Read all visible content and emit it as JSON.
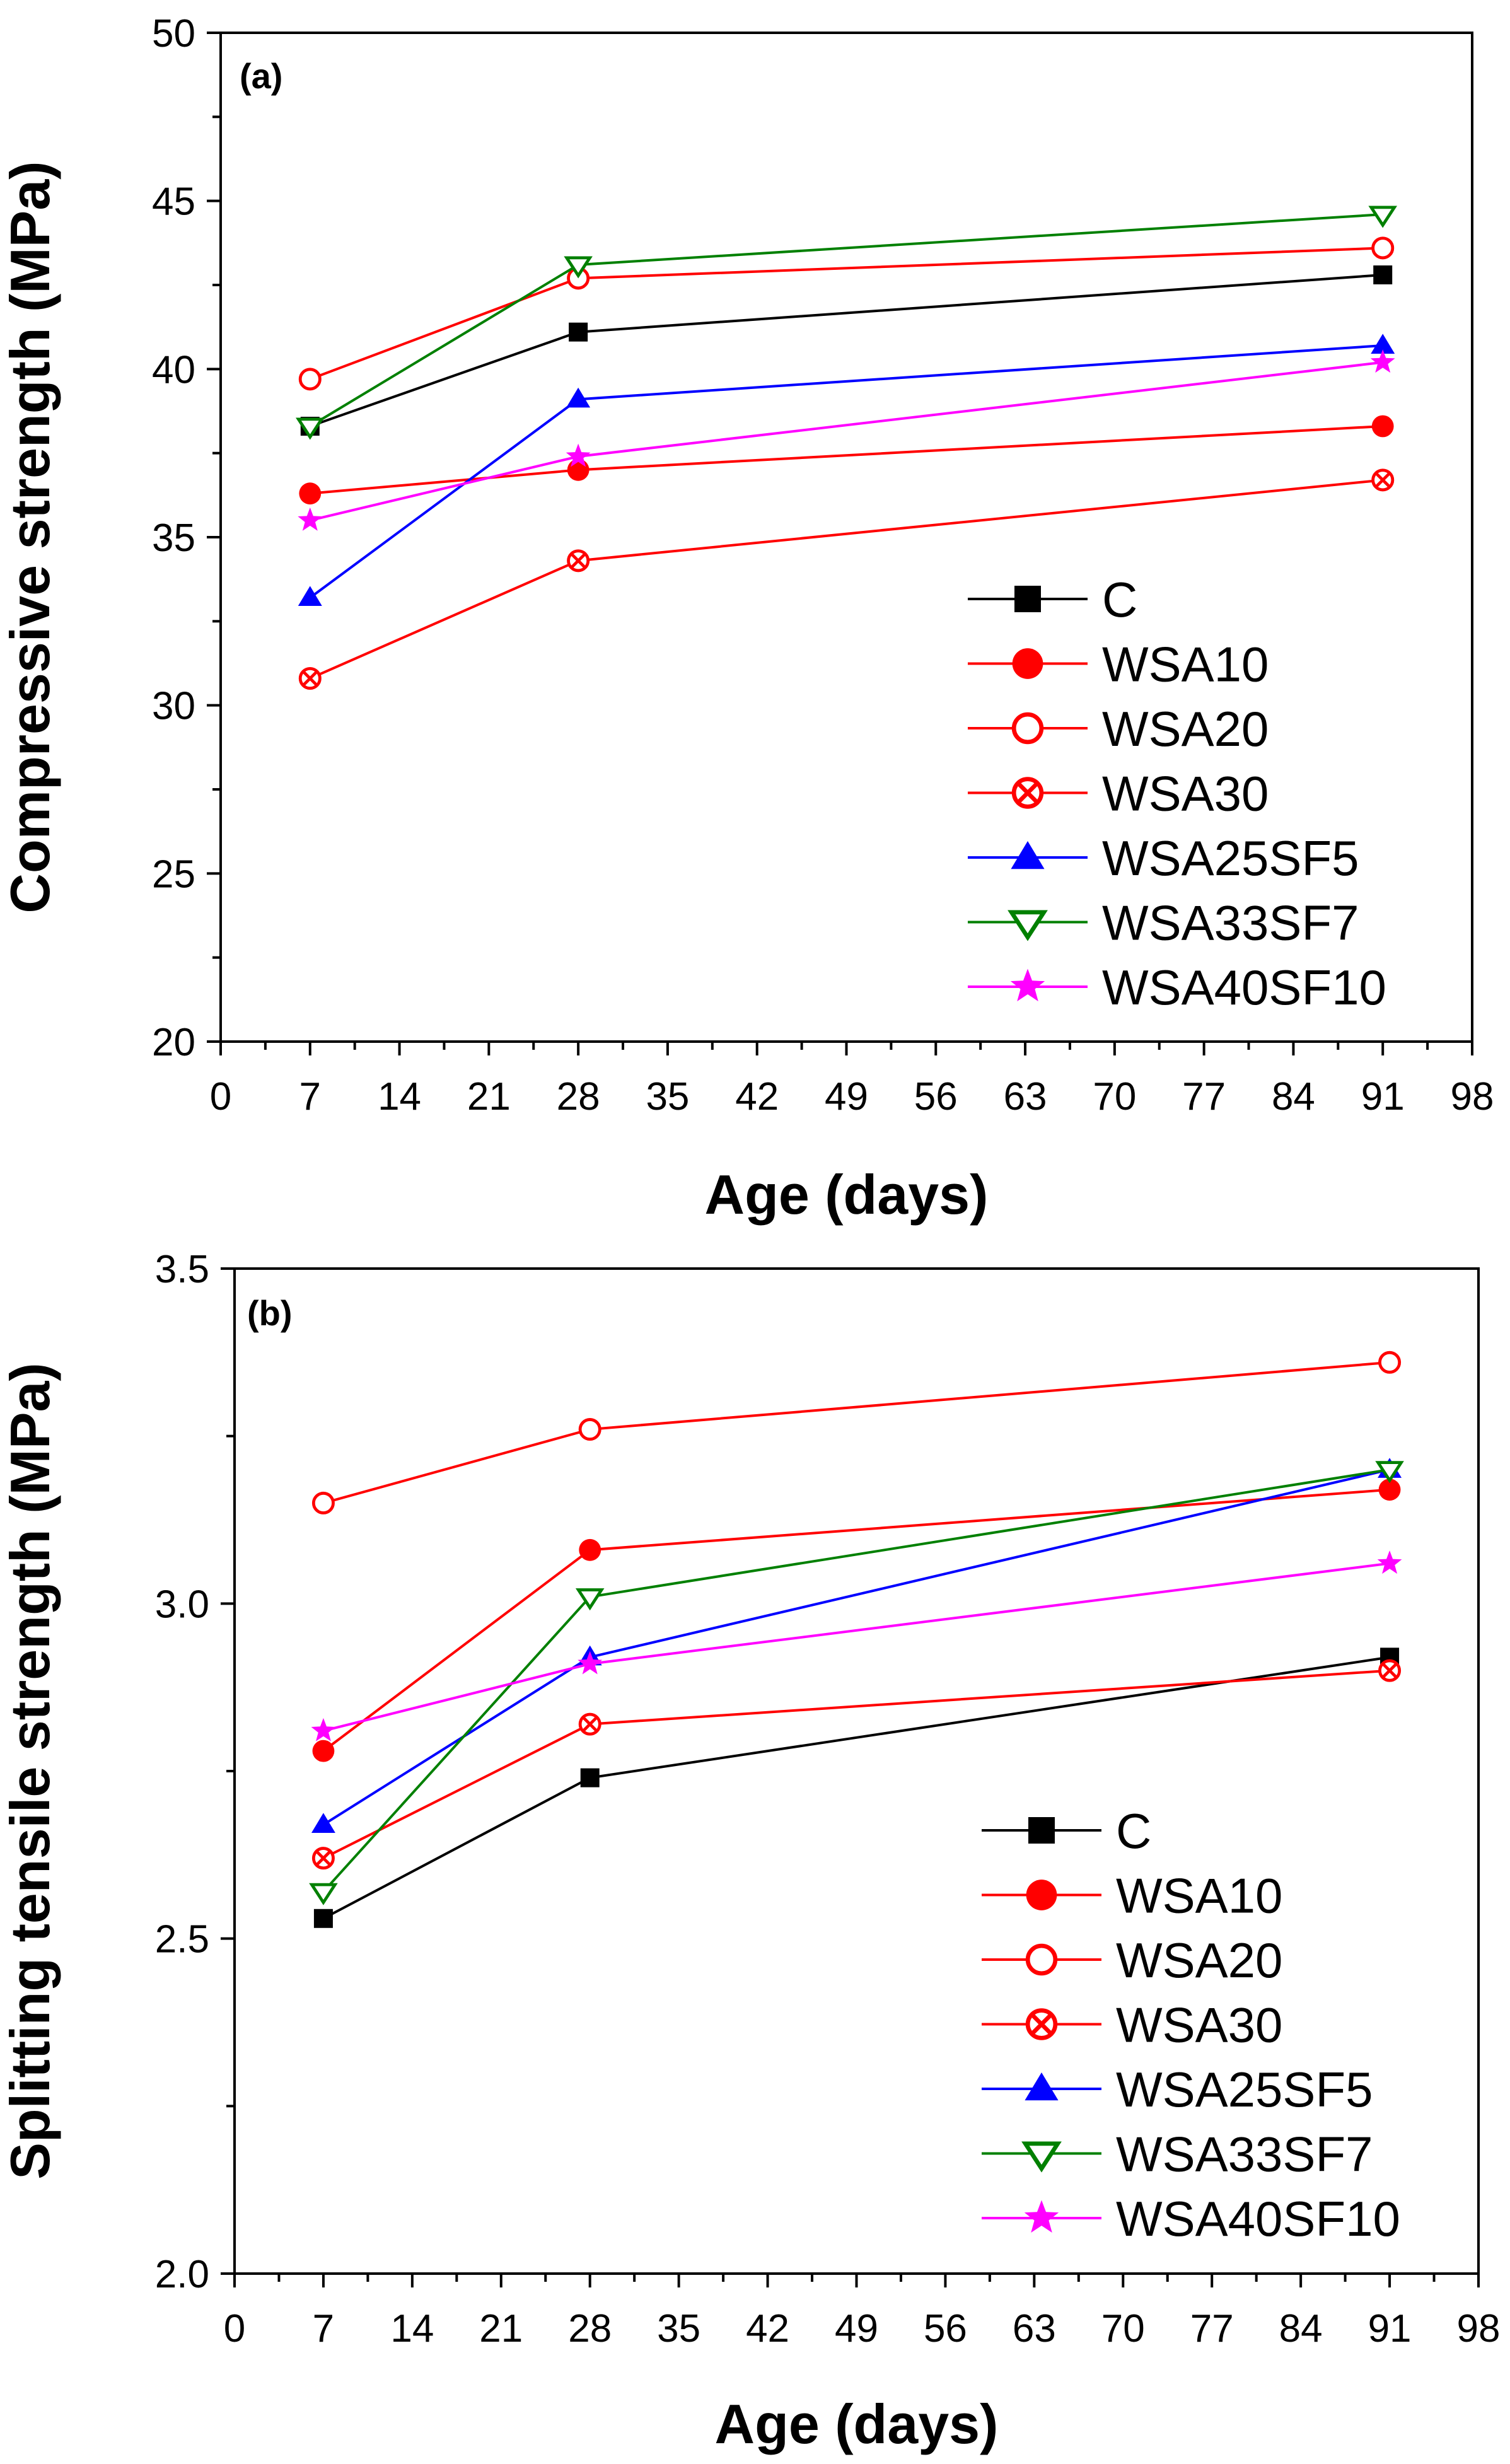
{
  "chart_data": [
    {
      "type": "line",
      "panel_label": "(a)",
      "xlabel": "Age (days)",
      "ylabel": "Compressive strength (MPa)",
      "xlim": [
        0,
        98
      ],
      "ylim": [
        20,
        50
      ],
      "xticks": [
        0,
        7,
        14,
        21,
        28,
        35,
        42,
        49,
        56,
        63,
        70,
        77,
        84,
        91,
        98
      ],
      "yticks": [
        20,
        25,
        30,
        35,
        40,
        45,
        50
      ],
      "ytick_labels": [
        "20",
        "25",
        "30",
        "35",
        "40",
        "45",
        "50"
      ],
      "x": [
        7,
        28,
        91
      ],
      "legend_position": "lower-right",
      "series": [
        {
          "name": "C",
          "color": "#000000",
          "marker": "square",
          "values": [
            38.3,
            41.1,
            42.8
          ]
        },
        {
          "name": "WSA10",
          "color": "#ff0000",
          "marker": "filled-circle",
          "values": [
            36.3,
            37.0,
            38.3
          ]
        },
        {
          "name": "WSA20",
          "color": "#ff0000",
          "marker": "open-circle",
          "values": [
            39.7,
            42.7,
            43.6
          ]
        },
        {
          "name": "WSA30",
          "color": "#ff0000",
          "marker": "crossed-circle",
          "values": [
            30.8,
            34.3,
            36.7
          ]
        },
        {
          "name": "WSA25SF5",
          "color": "#0000ff",
          "marker": "filled-triangle",
          "values": [
            33.2,
            39.1,
            40.7
          ]
        },
        {
          "name": "WSA33SF7",
          "color": "#008000",
          "marker": "open-triangle-down",
          "values": [
            38.3,
            43.1,
            44.6
          ]
        },
        {
          "name": "WSA40SF10",
          "color": "#ff00ff",
          "marker": "star",
          "values": [
            35.5,
            37.4,
            40.2
          ]
        }
      ]
    },
    {
      "type": "line",
      "panel_label": "(b)",
      "xlabel": "Age (days)",
      "ylabel": "Splitting tensile strength (MPa)",
      "xlim": [
        0,
        98
      ],
      "ylim": [
        2.0,
        3.5
      ],
      "xticks": [
        0,
        7,
        14,
        21,
        28,
        35,
        42,
        49,
        56,
        63,
        70,
        77,
        84,
        91,
        98
      ],
      "yticks": [
        2.0,
        2.5,
        3.0,
        3.5
      ],
      "ytick_labels": [
        "2.0",
        "2.5",
        "3.0",
        "3.5"
      ],
      "x": [
        7,
        28,
        91
      ],
      "legend_position": "lower-right",
      "series": [
        {
          "name": "C",
          "color": "#000000",
          "marker": "square",
          "values": [
            2.53,
            2.74,
            2.92
          ]
        },
        {
          "name": "WSA10",
          "color": "#ff0000",
          "marker": "filled-circle",
          "values": [
            2.78,
            3.08,
            3.17
          ]
        },
        {
          "name": "WSA20",
          "color": "#ff0000",
          "marker": "open-circle",
          "values": [
            3.15,
            3.26,
            3.36
          ]
        },
        {
          "name": "WSA30",
          "color": "#ff0000",
          "marker": "crossed-circle",
          "values": [
            2.62,
            2.82,
            2.9
          ]
        },
        {
          "name": "WSA25SF5",
          "color": "#0000ff",
          "marker": "filled-triangle",
          "values": [
            2.67,
            2.92,
            3.2
          ]
        },
        {
          "name": "WSA33SF7",
          "color": "#008000",
          "marker": "open-triangle-down",
          "values": [
            2.57,
            3.01,
            3.2
          ]
        },
        {
          "name": "WSA40SF10",
          "color": "#ff00ff",
          "marker": "star",
          "values": [
            2.81,
            2.91,
            3.06
          ]
        }
      ]
    }
  ]
}
